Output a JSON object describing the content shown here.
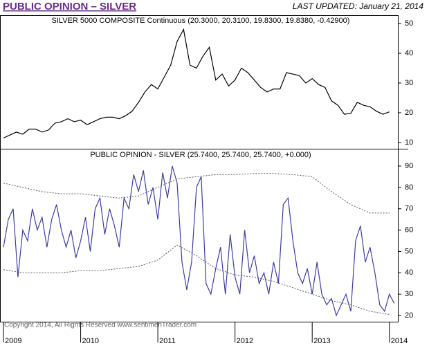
{
  "header": {
    "title": "PUBLIC OPINION – SILVER",
    "updated": "LAST UPDATED:  January 21, 2014"
  },
  "footer": "Copyright 2014, All Rights Reserved  www.sentimenTrader.com",
  "chart_data": [
    {
      "type": "line",
      "title": "SILVER 5000 COMPOSITE Continuous (20.3000, 20.3100, 19.8300, 19.8380, -0.42900)",
      "xlim": [
        2008.955,
        2014.11
      ],
      "ylim": [
        7.9,
        52.8
      ],
      "yticks": [
        10,
        20,
        30,
        40,
        50
      ],
      "series": [
        {
          "color": "#000000",
          "dash": false,
          "x": [
            2009,
            2009.0833,
            2009.1667,
            2009.25,
            2009.3333,
            2009.4167,
            2009.5,
            2009.5833,
            2009.6667,
            2009.75,
            2009.8333,
            2009.9167,
            2010,
            2010.0833,
            2010.1667,
            2010.25,
            2010.3333,
            2010.4167,
            2010.5,
            2010.5833,
            2010.6667,
            2010.75,
            2010.8333,
            2010.9167,
            2011,
            2011.0833,
            2011.1667,
            2011.25,
            2011.3333,
            2011.4167,
            2011.5,
            2011.5833,
            2011.6667,
            2011.75,
            2011.8333,
            2011.9167,
            2012,
            2012.0833,
            2012.1667,
            2012.25,
            2012.3333,
            2012.4167,
            2012.5,
            2012.5833,
            2012.6667,
            2012.75,
            2012.8333,
            2012.9167,
            2013,
            2013.0833,
            2013.1667,
            2013.25,
            2013.3333,
            2013.4167,
            2013.5,
            2013.5833,
            2013.6667,
            2013.75,
            2013.8333,
            2013.9167,
            2014
          ],
          "values": [
            11.5,
            12.5,
            13.5,
            12.8,
            14.5,
            14.5,
            13.5,
            14.2,
            16.5,
            17,
            18,
            17,
            17.5,
            16,
            17,
            18,
            18.5,
            18.5,
            18,
            19,
            20.5,
            23.5,
            27,
            29.5,
            28,
            32,
            36,
            44,
            48,
            36,
            35,
            39,
            42,
            31,
            33,
            29,
            31,
            35,
            33.5,
            31,
            28.5,
            27,
            28,
            28,
            33.5,
            33,
            32.5,
            30,
            31.5,
            29.5,
            28.5,
            24,
            22.5,
            19.5,
            19.8,
            23.5,
            22.5,
            22,
            20.5,
            19.5,
            20.3
          ]
        }
      ]
    },
    {
      "type": "line",
      "title": "PUBLIC OPINION - SILVER (25.7400, 25.7400, 25.7400, +0.000)",
      "xlim": [
        2008.955,
        2014.11
      ],
      "ylim": [
        17.1,
        98.1
      ],
      "yticks": [
        20,
        30,
        40,
        50,
        60,
        70,
        80,
        90
      ],
      "xticks": [
        2009,
        2010,
        2011,
        2012,
        2013,
        2014
      ],
      "series": [
        {
          "color": "#3c3c9c",
          "dash": false,
          "x": [
            2009,
            2009.0625,
            2009.125,
            2009.1875,
            2009.25,
            2009.3125,
            2009.375,
            2009.4375,
            2009.5,
            2009.5625,
            2009.625,
            2009.6875,
            2009.75,
            2009.8125,
            2009.875,
            2009.9375,
            2010,
            2010.0625,
            2010.125,
            2010.1875,
            2010.25,
            2010.3125,
            2010.375,
            2010.4375,
            2010.5,
            2010.5625,
            2010.625,
            2010.6875,
            2010.75,
            2010.8125,
            2010.875,
            2010.9375,
            2011,
            2011.0625,
            2011.125,
            2011.1875,
            2011.25,
            2011.3125,
            2011.375,
            2011.4375,
            2011.5,
            2011.5625,
            2011.625,
            2011.6875,
            2011.75,
            2011.8125,
            2011.875,
            2011.9375,
            2012,
            2012.0625,
            2012.125,
            2012.1875,
            2012.25,
            2012.3125,
            2012.375,
            2012.4375,
            2012.5,
            2012.5625,
            2012.625,
            2012.6875,
            2012.75,
            2012.8125,
            2012.875,
            2012.9375,
            2013,
            2013.0625,
            2013.125,
            2013.1875,
            2013.25,
            2013.3125,
            2013.375,
            2013.4375,
            2013.5,
            2013.5625,
            2013.625,
            2013.6875,
            2013.75,
            2013.8125,
            2013.875,
            2013.9375,
            2014,
            2014.0625
          ],
          "values": [
            52,
            65,
            70,
            38,
            60,
            55,
            70,
            60,
            66,
            52,
            65,
            72,
            60,
            52,
            60,
            47,
            55,
            66,
            50,
            70,
            75,
            58,
            70,
            62,
            52,
            75,
            70,
            86,
            78,
            88,
            72,
            80,
            65,
            87,
            75,
            90,
            82,
            45,
            32,
            45,
            80,
            85,
            35,
            30,
            42,
            52,
            30,
            58,
            38,
            30,
            60,
            40,
            48,
            35,
            40,
            30,
            45,
            35,
            72,
            75,
            55,
            40,
            35,
            42,
            30,
            45,
            30,
            25,
            28,
            20,
            25,
            30,
            22,
            55,
            62,
            45,
            52,
            40,
            25,
            22,
            30,
            25.74
          ]
        },
        {
          "color": "#555555",
          "dash": true,
          "x": [
            2009,
            2009.25,
            2009.5,
            2009.75,
            2010,
            2010.25,
            2010.5,
            2010.75,
            2011,
            2011.25,
            2011.5,
            2011.75,
            2012,
            2012.25,
            2012.5,
            2012.75,
            2013,
            2013.25,
            2013.5,
            2013.75,
            2014
          ],
          "values": [
            82,
            80,
            78,
            77,
            77,
            76,
            75,
            76,
            80,
            84,
            85,
            86,
            86,
            86.5,
            86.5,
            86,
            85,
            78,
            72,
            68,
            68
          ]
        },
        {
          "color": "#555555",
          "dash": true,
          "x": [
            2009,
            2009.25,
            2009.5,
            2009.75,
            2010,
            2010.25,
            2010.5,
            2010.75,
            2011,
            2011.25,
            2011.5,
            2011.75,
            2012,
            2012.25,
            2012.5,
            2012.75,
            2013,
            2013.25,
            2013.5,
            2013.75,
            2014
          ],
          "values": [
            41.5,
            40,
            40,
            40,
            41,
            41,
            42,
            43,
            46,
            53,
            48,
            42,
            39,
            38,
            36,
            33,
            30,
            27,
            25,
            22,
            20.5
          ]
        }
      ]
    }
  ]
}
